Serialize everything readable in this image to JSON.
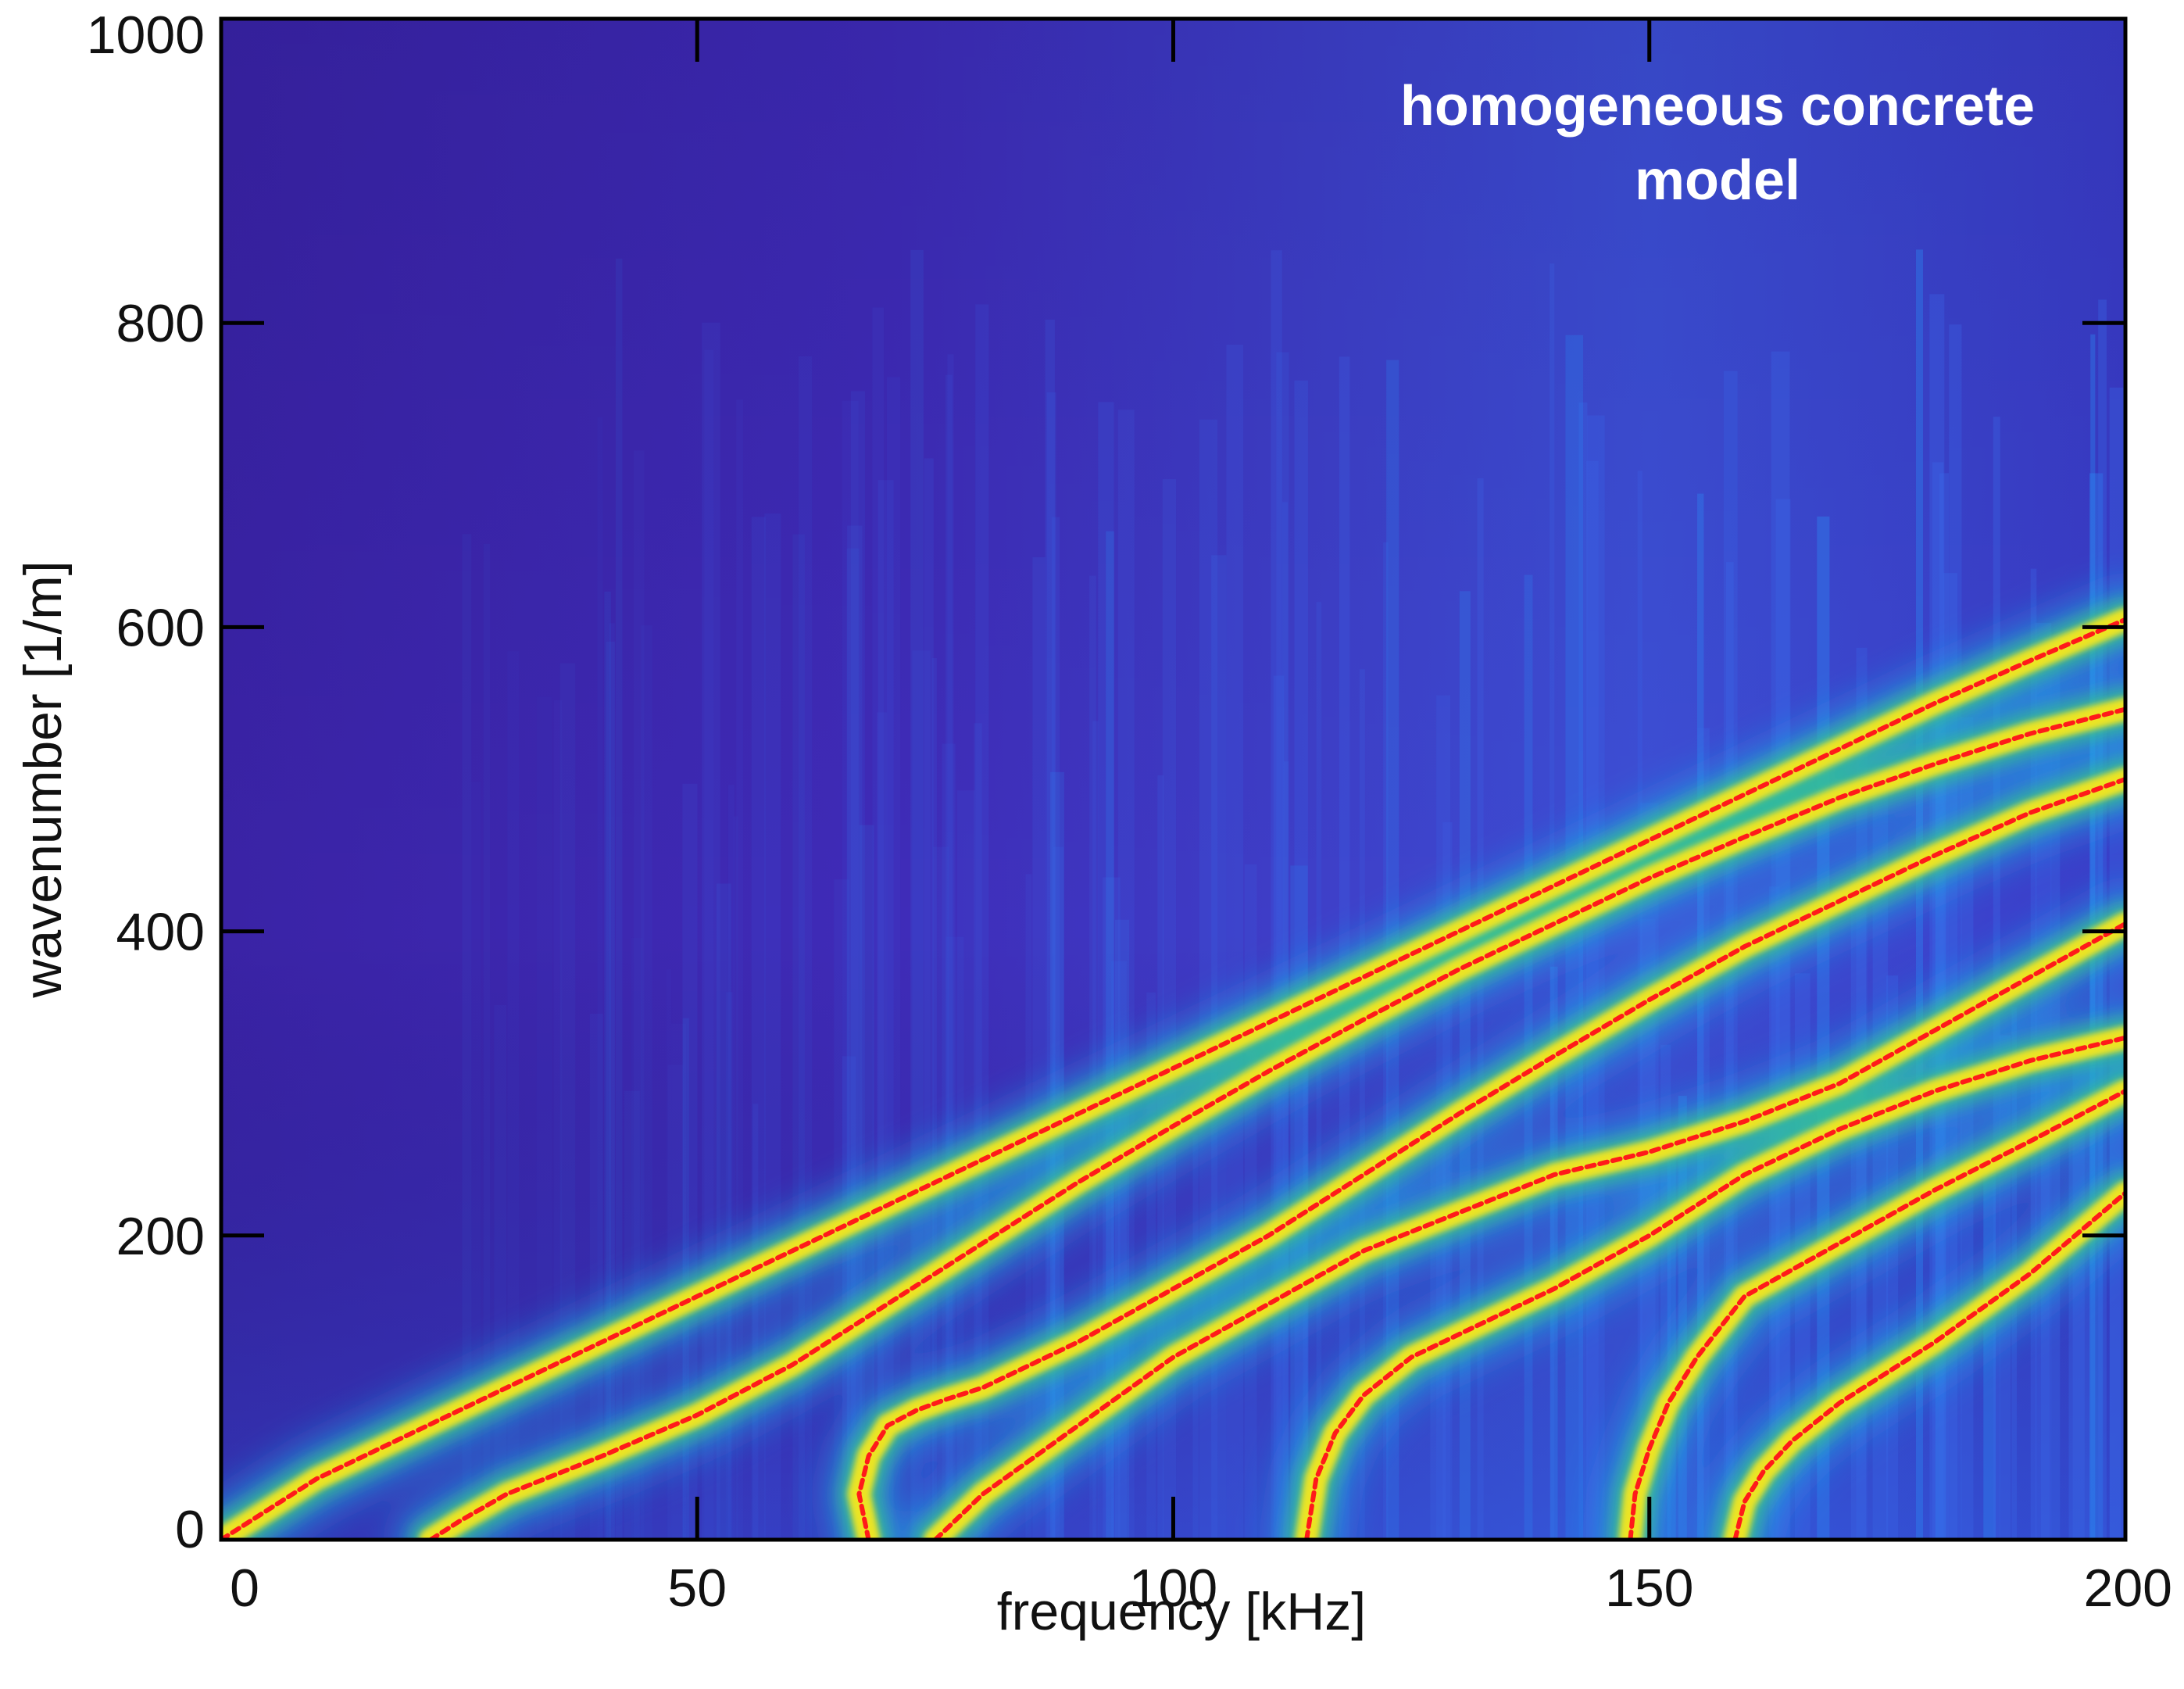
{
  "chart_data": {
    "type": "heatmap",
    "title": "",
    "xlabel": "frequency [kHz]",
    "ylabel": "wavenumber [1/m]",
    "xlim": [
      0,
      200
    ],
    "ylim": [
      0,
      1000
    ],
    "xticks": [
      0,
      50,
      100,
      150,
      200
    ],
    "yticks": [
      0,
      200,
      400,
      600,
      800,
      1000
    ],
    "xtick_labels": [
      "0",
      "50",
      "100",
      "150",
      "200"
    ],
    "ytick_labels": [
      "0",
      "200",
      "400",
      "600",
      "800",
      "1000"
    ],
    "annotation": [
      "homogeneous concrete",
      "model"
    ],
    "grid": false,
    "colormap": "parula",
    "colors": {
      "background": "#3e26a8",
      "mid": "#2f8ef0",
      "ridge": "#f5e71c",
      "curve": "#ff1a1a"
    },
    "series": [
      {
        "x": [
          0,
          10,
          20,
          30,
          40,
          50,
          60,
          70,
          80,
          90,
          100,
          110,
          120,
          130,
          140,
          150,
          160,
          170,
          180,
          190,
          200
        ],
        "y": [
          0,
          40,
          70,
          100,
          130,
          160,
          190,
          220,
          250,
          280,
          310,
          340,
          370,
          400,
          430,
          460,
          490,
          520,
          550,
          578,
          605
        ]
      },
      {
        "x": [
          22,
          25,
          30,
          40,
          50,
          60,
          70,
          80,
          90,
          100,
          110,
          120,
          130,
          140,
          150,
          160,
          170,
          180,
          190,
          200
        ],
        "y": [
          0,
          12,
          30,
          55,
          82,
          115,
          155,
          195,
          235,
          272,
          308,
          342,
          375,
          405,
          435,
          462,
          488,
          510,
          530,
          546
        ]
      },
      {
        "x": [
          68,
          67,
          68,
          70,
          73,
          76,
          80,
          90,
          100,
          110,
          120,
          130,
          140,
          150,
          160,
          170,
          180,
          190,
          200
        ],
        "y": [
          0,
          30,
          55,
          75,
          85,
          92,
          100,
          130,
          165,
          200,
          240,
          280,
          318,
          355,
          390,
          420,
          450,
          478,
          500
        ]
      },
      {
        "x": [
          75,
          80,
          90,
          100,
          110,
          120,
          130,
          140,
          150,
          160,
          170,
          180,
          190,
          200
        ],
        "y": [
          0,
          30,
          75,
          120,
          155,
          190,
          215,
          240,
          255,
          275,
          300,
          335,
          370,
          405
        ]
      },
      {
        "x": [
          114,
          115,
          117,
          120,
          125,
          130,
          140,
          150,
          160,
          170,
          180,
          190,
          200
        ],
        "y": [
          0,
          40,
          70,
          95,
          120,
          135,
          165,
          200,
          240,
          270,
          295,
          315,
          330
        ]
      },
      {
        "x": [
          148,
          148.5,
          150,
          152,
          155,
          160,
          170,
          180,
          190,
          200
        ],
        "y": [
          0,
          30,
          60,
          90,
          120,
          160,
          195,
          230,
          262,
          295
        ]
      },
      {
        "x": [
          159,
          160,
          162,
          165,
          170,
          180,
          190,
          200
        ],
        "y": [
          0,
          25,
          45,
          65,
          90,
          130,
          175,
          228
        ]
      }
    ]
  }
}
